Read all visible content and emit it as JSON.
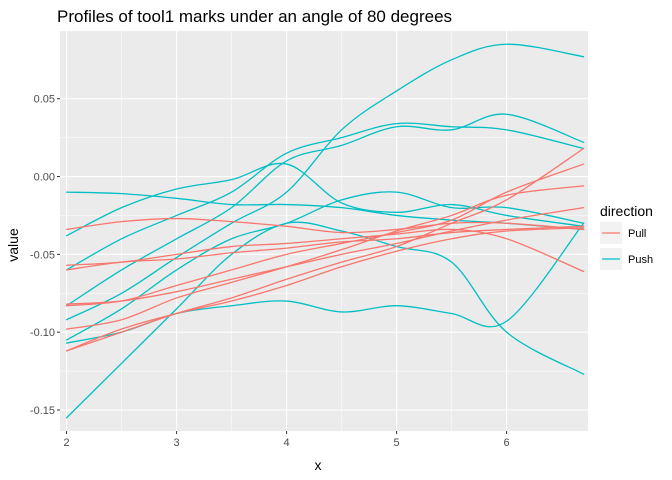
{
  "chart_data": {
    "type": "line",
    "title": "Profiles of tool1 marks under an angle of 80 degrees",
    "xlabel": "x",
    "ylabel": "value",
    "xlim": [
      1.94,
      6.74
    ],
    "ylim": [
      -0.1635,
      0.0935
    ],
    "x_ticks": [
      2,
      3,
      4,
      5,
      6
    ],
    "x_tick_labels": [
      "2",
      "3",
      "4",
      "5",
      "6"
    ],
    "y_ticks": [
      -0.15,
      -0.1,
      -0.05,
      0.0,
      0.05
    ],
    "y_tick_labels": [
      "-0.15",
      "-0.10",
      "-0.05",
      "0.00",
      "0.05"
    ],
    "grid": true,
    "legend": {
      "title": "direction",
      "position": "right",
      "entries": [
        {
          "label": "Pull",
          "color": "#F8766D"
        },
        {
          "label": "Push",
          "color": "#00BFC4"
        }
      ]
    },
    "colors": {
      "Pull": "#F8766D",
      "Push": "#00BFC4"
    },
    "series": [
      {
        "group": "Pull",
        "x": [
          2.0,
          2.5,
          3.0,
          3.5,
          4.0,
          4.5,
          5.0,
          5.5,
          6.0,
          6.7
        ],
        "values": [
          -0.034,
          -0.029,
          -0.027,
          -0.029,
          -0.032,
          -0.036,
          -0.034,
          -0.03,
          -0.03,
          -0.034
        ]
      },
      {
        "group": "Pull",
        "x": [
          2.0,
          2.5,
          3.0,
          3.5,
          4.0,
          4.5,
          5.0,
          5.5,
          6.0,
          6.7
        ],
        "values": [
          -0.057,
          -0.055,
          -0.05,
          -0.045,
          -0.043,
          -0.04,
          -0.037,
          -0.034,
          -0.04,
          -0.061
        ]
      },
      {
        "group": "Pull",
        "x": [
          2.0,
          2.5,
          3.0,
          3.5,
          4.0,
          4.5,
          5.0,
          5.5,
          6.0,
          6.7
        ],
        "values": [
          -0.06,
          -0.055,
          -0.053,
          -0.049,
          -0.046,
          -0.042,
          -0.04,
          -0.036,
          -0.034,
          -0.032
        ]
      },
      {
        "group": "Pull",
        "x": [
          2.0,
          2.5,
          3.0,
          3.5,
          4.0,
          4.5,
          5.0,
          5.5,
          6.0,
          6.7
        ],
        "values": [
          -0.082,
          -0.08,
          -0.074,
          -0.066,
          -0.058,
          -0.05,
          -0.043,
          -0.035,
          -0.028,
          -0.02
        ]
      },
      {
        "group": "Pull",
        "x": [
          2.0,
          2.5,
          3.0,
          3.5,
          4.0,
          4.5,
          5.0,
          5.5,
          6.0,
          6.7
        ],
        "values": [
          -0.083,
          -0.08,
          -0.07,
          -0.06,
          -0.05,
          -0.043,
          -0.036,
          -0.028,
          -0.01,
          0.008
        ]
      },
      {
        "group": "Pull",
        "x": [
          2.0,
          2.5,
          3.0,
          3.5,
          4.0,
          4.5,
          5.0,
          5.5,
          6.0,
          6.7
        ],
        "values": [
          -0.098,
          -0.092,
          -0.078,
          -0.068,
          -0.058,
          -0.047,
          -0.035,
          -0.025,
          -0.012,
          -0.006
        ]
      },
      {
        "group": "Pull",
        "x": [
          2.0,
          2.5,
          3.0,
          3.5,
          4.0,
          4.5,
          5.0,
          5.5,
          6.0,
          6.7
        ],
        "values": [
          -0.112,
          -0.1,
          -0.088,
          -0.078,
          -0.066,
          -0.055,
          -0.045,
          -0.03,
          -0.015,
          0.018
        ]
      },
      {
        "group": "Pull",
        "x": [
          2.0,
          2.5,
          3.0,
          3.5,
          4.0,
          4.5,
          5.0,
          5.5,
          6.0,
          6.7
        ],
        "values": [
          -0.112,
          -0.098,
          -0.088,
          -0.08,
          -0.07,
          -0.058,
          -0.048,
          -0.04,
          -0.035,
          -0.033
        ]
      },
      {
        "group": "Push",
        "x": [
          2.0,
          2.5,
          3.0,
          3.5,
          4.0,
          4.5,
          5.0,
          5.5,
          6.0,
          6.7
        ],
        "values": [
          -0.01,
          -0.011,
          -0.014,
          -0.018,
          -0.018,
          -0.02,
          -0.025,
          -0.028,
          -0.03,
          -0.034
        ]
      },
      {
        "group": "Push",
        "x": [
          2.0,
          2.5,
          3.0,
          3.5,
          4.0,
          4.5,
          5.0,
          5.5,
          6.0,
          6.7
        ],
        "values": [
          -0.038,
          -0.02,
          -0.008,
          -0.002,
          0.008,
          -0.017,
          -0.023,
          -0.018,
          -0.025,
          -0.032
        ]
      },
      {
        "group": "Push",
        "x": [
          2.0,
          2.5,
          3.0,
          3.5,
          4.0,
          4.5,
          5.0,
          5.5,
          6.0,
          6.7
        ],
        "values": [
          -0.06,
          -0.04,
          -0.025,
          -0.01,
          0.015,
          0.025,
          0.034,
          0.032,
          0.03,
          0.018
        ]
      },
      {
        "group": "Push",
        "x": [
          2.0,
          2.5,
          3.0,
          3.5,
          4.0,
          4.5,
          5.0,
          5.5,
          6.0,
          6.7
        ],
        "values": [
          -0.083,
          -0.06,
          -0.04,
          -0.02,
          0.01,
          0.02,
          0.032,
          0.03,
          0.04,
          0.022
        ]
      },
      {
        "group": "Push",
        "x": [
          2.0,
          2.5,
          3.0,
          3.5,
          4.0,
          4.5,
          5.0,
          5.5,
          6.0,
          6.7
        ],
        "values": [
          -0.092,
          -0.075,
          -0.052,
          -0.03,
          -0.01,
          0.03,
          0.055,
          0.075,
          0.085,
          0.077
        ]
      },
      {
        "group": "Push",
        "x": [
          2.0,
          2.5,
          3.0,
          3.5,
          4.0,
          4.5,
          5.0,
          5.5,
          6.0,
          6.7
        ],
        "values": [
          -0.105,
          -0.085,
          -0.06,
          -0.04,
          -0.03,
          -0.015,
          -0.01,
          -0.02,
          -0.02,
          -0.03
        ]
      },
      {
        "group": "Push",
        "x": [
          2.0,
          2.5,
          3.0,
          3.5,
          4.0,
          4.5,
          5.0,
          5.5,
          6.0,
          6.7
        ],
        "values": [
          -0.107,
          -0.1,
          -0.088,
          -0.083,
          -0.08,
          -0.087,
          -0.083,
          -0.088,
          -0.093,
          -0.03
        ]
      },
      {
        "group": "Push",
        "x": [
          2.0,
          2.5,
          3.0,
          3.5,
          4.0,
          4.5,
          5.0,
          5.5,
          6.0,
          6.7
        ],
        "values": [
          -0.155,
          -0.12,
          -0.085,
          -0.05,
          -0.03,
          -0.035,
          -0.045,
          -0.055,
          -0.1,
          -0.127
        ]
      }
    ]
  }
}
